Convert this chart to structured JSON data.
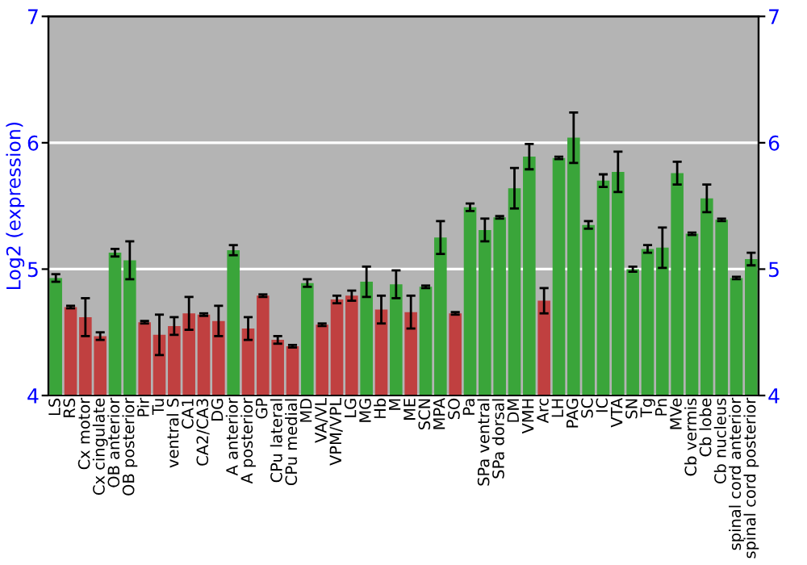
{
  "chart_data": {
    "type": "bar",
    "ylabel": "Log2 (expression)",
    "categories": [
      "LS",
      "RS",
      "Cx motor",
      "Cx cingulate",
      "OB anterior",
      "OB posterior",
      "Pir",
      "Tu",
      "ventral S",
      "CA1",
      "CA2/CA3",
      "DG",
      "A anterior",
      "A posterior",
      "GP",
      "CPu lateral",
      "CPu medial",
      "MD",
      "VA/VL",
      "VPM/VPL",
      "LG",
      "MG",
      "Hb",
      "M",
      "ME",
      "SCN",
      "MPA",
      "SO",
      "Pa",
      "SPa ventral",
      "SPa dorsal",
      "DM",
      "VMH",
      "Arc",
      "LH",
      "PAG",
      "SC",
      "IC",
      "VTA",
      "SN",
      "Tg",
      "Pn",
      "MVe",
      "Cb vermis",
      "Cb lobe",
      "Cb nucleus",
      "spinal cord anterior",
      "spinal cord posterior"
    ],
    "values": [
      4.93,
      4.7,
      4.62,
      4.47,
      5.13,
      5.07,
      4.58,
      4.48,
      4.55,
      4.65,
      4.64,
      4.59,
      5.15,
      4.53,
      4.79,
      4.44,
      4.39,
      4.89,
      4.56,
      4.76,
      4.79,
      4.9,
      4.68,
      4.88,
      4.66,
      4.86,
      5.25,
      4.65,
      5.49,
      5.31,
      5.41,
      5.64,
      5.89,
      4.75,
      5.88,
      6.04,
      5.35,
      5.7,
      5.77,
      5.0,
      5.16,
      5.17,
      5.76,
      5.28,
      5.56,
      5.39,
      4.93,
      5.08
    ],
    "errors": [
      0.03,
      0.01,
      0.15,
      0.03,
      0.03,
      0.15,
      0.01,
      0.16,
      0.07,
      0.13,
      0.01,
      0.12,
      0.04,
      0.09,
      0.01,
      0.03,
      0.01,
      0.03,
      0.01,
      0.03,
      0.04,
      0.12,
      0.11,
      0.11,
      0.13,
      0.01,
      0.13,
      0.01,
      0.03,
      0.09,
      0.01,
      0.16,
      0.1,
      0.1,
      0.01,
      0.2,
      0.03,
      0.05,
      0.16,
      0.02,
      0.03,
      0.16,
      0.09,
      0.01,
      0.11,
      0.01,
      0.01,
      0.05
    ],
    "colors": [
      "#3aa53a",
      "#c04040",
      "#c04040",
      "#c04040",
      "#3aa53a",
      "#3aa53a",
      "#c04040",
      "#c04040",
      "#c04040",
      "#c04040",
      "#c04040",
      "#c04040",
      "#3aa53a",
      "#c04040",
      "#c04040",
      "#c04040",
      "#c04040",
      "#3aa53a",
      "#c04040",
      "#c04040",
      "#c04040",
      "#3aa53a",
      "#c04040",
      "#3aa53a",
      "#c04040",
      "#3aa53a",
      "#3aa53a",
      "#c04040",
      "#3aa53a",
      "#3aa53a",
      "#3aa53a",
      "#3aa53a",
      "#3aa53a",
      "#c04040",
      "#3aa53a",
      "#3aa53a",
      "#3aa53a",
      "#3aa53a",
      "#3aa53a",
      "#3aa53a",
      "#3aa53a",
      "#3aa53a",
      "#3aa53a",
      "#3aa53a",
      "#3aa53a",
      "#3aa53a",
      "#3aa53a",
      "#3aa53a"
    ],
    "ylim": [
      4,
      7
    ],
    "yticks": [
      4,
      5,
      6,
      7
    ],
    "y2lim": [
      4,
      7
    ],
    "y2ticks": [
      4,
      5,
      6,
      7
    ],
    "grid": "y"
  }
}
